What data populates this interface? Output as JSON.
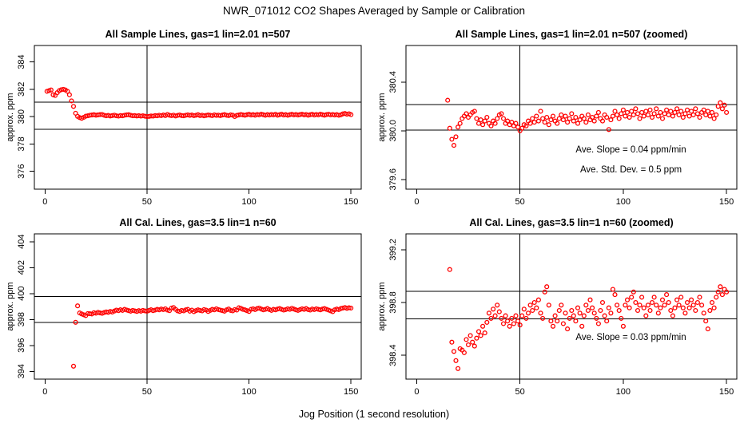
{
  "header": {
    "title": "NWR_071012  CO2 Shapes Averaged by Sample or Calibration"
  },
  "xlabel": "Jog Position (1 second resolution)",
  "colors": {
    "point": "#FF0000",
    "axis": "#000000",
    "background": "#FFFFFF"
  },
  "chart_data": {
    "type": "scatter",
    "title": "NWR_071012  CO2 Shapes Averaged by Sample or Calibration",
    "xlabel": "Jog Position (1 second resolution)",
    "point_style": "open-circle-red",
    "grid": false,
    "series": {
      "sample": [
        [
          1,
          381.85
        ],
        [
          2,
          381.9
        ],
        [
          3,
          381.95
        ],
        [
          4,
          381.6
        ],
        [
          5,
          381.55
        ],
        [
          6,
          381.75
        ],
        [
          7,
          381.9
        ],
        [
          8,
          381.97
        ],
        [
          9,
          382.0
        ],
        [
          10,
          381.95
        ],
        [
          11,
          381.85
        ],
        [
          12,
          381.6
        ],
        [
          13,
          381.15
        ],
        [
          14,
          380.75
        ],
        [
          15,
          380.25
        ],
        [
          16,
          380.02
        ],
        [
          17,
          379.93
        ],
        [
          18,
          379.88
        ],
        [
          19,
          379.95
        ],
        [
          20,
          380.03
        ],
        [
          21,
          380.06
        ],
        [
          22,
          380.1
        ],
        [
          23,
          380.12
        ],
        [
          24,
          380.14
        ],
        [
          25,
          380.11
        ],
        [
          26,
          380.13
        ],
        [
          27,
          380.15
        ],
        [
          28,
          380.16
        ],
        [
          29,
          380.1
        ],
        [
          30,
          380.06
        ],
        [
          31,
          380.09
        ],
        [
          32,
          380.05
        ],
        [
          33,
          380.08
        ],
        [
          34,
          380.11
        ],
        [
          35,
          380.06
        ],
        [
          36,
          380.04
        ],
        [
          37,
          380.08
        ],
        [
          38,
          380.06
        ],
        [
          39,
          380.1
        ],
        [
          40,
          380.13
        ],
        [
          41,
          380.14
        ],
        [
          42,
          380.1
        ],
        [
          43,
          380.06
        ],
        [
          44,
          380.08
        ],
        [
          45,
          380.05
        ],
        [
          46,
          380.07
        ],
        [
          47,
          380.04
        ],
        [
          48,
          380.06
        ],
        [
          49,
          380.03
        ],
        [
          50,
          380.0
        ],
        [
          51,
          380.02
        ],
        [
          52,
          380.05
        ],
        [
          53,
          380.04
        ],
        [
          54,
          380.08
        ],
        [
          55,
          380.06
        ],
        [
          56,
          380.1
        ],
        [
          57,
          380.07
        ],
        [
          58,
          380.12
        ],
        [
          59,
          380.08
        ],
        [
          60,
          380.16
        ],
        [
          61,
          380.1
        ],
        [
          62,
          380.07
        ],
        [
          63,
          380.11
        ],
        [
          64,
          380.05
        ],
        [
          65,
          380.09
        ],
        [
          66,
          380.12
        ],
        [
          67,
          380.08
        ],
        [
          68,
          380.06
        ],
        [
          69,
          380.1
        ],
        [
          70,
          380.13
        ],
        [
          71,
          380.09
        ],
        [
          72,
          380.12
        ],
        [
          73,
          380.07
        ],
        [
          74,
          380.1
        ],
        [
          75,
          380.14
        ],
        [
          76,
          380.08
        ],
        [
          77,
          380.11
        ],
        [
          78,
          380.06
        ],
        [
          79,
          380.09
        ],
        [
          80,
          380.12
        ],
        [
          81,
          380.1
        ],
        [
          82,
          380.07
        ],
        [
          83,
          380.13
        ],
        [
          84,
          380.09
        ],
        [
          85,
          380.11
        ],
        [
          86,
          380.08
        ],
        [
          87,
          380.12
        ],
        [
          88,
          380.15
        ],
        [
          89,
          380.1
        ],
        [
          90,
          380.08
        ],
        [
          91,
          380.13
        ],
        [
          92,
          380.11
        ],
        [
          93,
          380.01
        ],
        [
          94,
          380.09
        ],
        [
          95,
          380.12
        ],
        [
          96,
          380.16
        ],
        [
          97,
          380.13
        ],
        [
          98,
          380.1
        ],
        [
          99,
          380.14
        ],
        [
          100,
          380.17
        ],
        [
          101,
          380.12
        ],
        [
          102,
          380.15
        ],
        [
          103,
          380.11
        ],
        [
          104,
          380.16
        ],
        [
          105,
          380.13
        ],
        [
          106,
          380.18
        ],
        [
          107,
          380.14
        ],
        [
          108,
          380.1
        ],
        [
          109,
          380.15
        ],
        [
          110,
          380.12
        ],
        [
          111,
          380.16
        ],
        [
          112,
          380.13
        ],
        [
          113,
          380.17
        ],
        [
          114,
          380.11
        ],
        [
          115,
          380.14
        ],
        [
          116,
          380.18
        ],
        [
          117,
          380.12
        ],
        [
          118,
          380.15
        ],
        [
          119,
          380.1
        ],
        [
          120,
          380.14
        ],
        [
          121,
          380.17
        ],
        [
          122,
          380.13
        ],
        [
          123,
          380.16
        ],
        [
          124,
          380.12
        ],
        [
          125,
          380.15
        ],
        [
          126,
          380.18
        ],
        [
          127,
          380.13
        ],
        [
          128,
          380.16
        ],
        [
          129,
          380.11
        ],
        [
          130,
          380.14
        ],
        [
          131,
          380.17
        ],
        [
          132,
          380.12
        ],
        [
          133,
          380.16
        ],
        [
          134,
          380.13
        ],
        [
          135,
          380.18
        ],
        [
          136,
          380.14
        ],
        [
          137,
          380.11
        ],
        [
          138,
          380.15
        ],
        [
          139,
          380.17
        ],
        [
          140,
          380.13
        ],
        [
          141,
          380.16
        ],
        [
          142,
          380.12
        ],
        [
          143,
          380.15
        ],
        [
          144,
          380.1
        ],
        [
          145,
          380.13
        ],
        [
          146,
          380.2
        ],
        [
          147,
          380.23
        ],
        [
          148,
          380.18
        ],
        [
          149,
          380.21
        ],
        [
          150,
          380.15
        ]
      ],
      "cal": [
        [
          14,
          394.4
        ],
        [
          15,
          397.78
        ],
        [
          16,
          399.05
        ],
        [
          17,
          398.5
        ],
        [
          18,
          398.43
        ],
        [
          19,
          398.36
        ],
        [
          20,
          398.3
        ],
        [
          21,
          398.45
        ],
        [
          22,
          398.44
        ],
        [
          23,
          398.42
        ],
        [
          24,
          398.52
        ],
        [
          25,
          398.48
        ],
        [
          26,
          398.55
        ],
        [
          27,
          398.5
        ],
        [
          28,
          398.47
        ],
        [
          29,
          398.53
        ],
        [
          30,
          398.58
        ],
        [
          31,
          398.55
        ],
        [
          32,
          398.62
        ],
        [
          33,
          398.57
        ],
        [
          34,
          398.65
        ],
        [
          35,
          398.72
        ],
        [
          36,
          398.68
        ],
        [
          37,
          398.75
        ],
        [
          38,
          398.7
        ],
        [
          39,
          398.78
        ],
        [
          40,
          398.73
        ],
        [
          41,
          398.68
        ],
        [
          42,
          398.64
        ],
        [
          43,
          398.7
        ],
        [
          44,
          398.66
        ],
        [
          45,
          398.62
        ],
        [
          46,
          398.68
        ],
        [
          47,
          398.64
        ],
        [
          48,
          398.7
        ],
        [
          49,
          398.66
        ],
        [
          50,
          398.63
        ],
        [
          51,
          398.7
        ],
        [
          52,
          398.75
        ],
        [
          53,
          398.68
        ],
        [
          54,
          398.72
        ],
        [
          55,
          398.78
        ],
        [
          56,
          398.74
        ],
        [
          57,
          398.8
        ],
        [
          58,
          398.76
        ],
        [
          59,
          398.82
        ],
        [
          60,
          398.72
        ],
        [
          61,
          398.68
        ],
        [
          62,
          398.88
        ],
        [
          63,
          398.92
        ],
        [
          64,
          398.78
        ],
        [
          65,
          398.66
        ],
        [
          66,
          398.62
        ],
        [
          67,
          398.7
        ],
        [
          68,
          398.66
        ],
        [
          69,
          398.74
        ],
        [
          70,
          398.78
        ],
        [
          71,
          398.64
        ],
        [
          72,
          398.72
        ],
        [
          73,
          398.6
        ],
        [
          74,
          398.68
        ],
        [
          75,
          398.74
        ],
        [
          76,
          398.7
        ],
        [
          77,
          398.66
        ],
        [
          78,
          398.76
        ],
        [
          79,
          398.72
        ],
        [
          80,
          398.62
        ],
        [
          81,
          398.7
        ],
        [
          82,
          398.78
        ],
        [
          83,
          398.74
        ],
        [
          84,
          398.82
        ],
        [
          85,
          398.76
        ],
        [
          86,
          398.72
        ],
        [
          87,
          398.68
        ],
        [
          88,
          398.64
        ],
        [
          89,
          398.74
        ],
        [
          90,
          398.8
        ],
        [
          91,
          398.7
        ],
        [
          92,
          398.66
        ],
        [
          93,
          398.76
        ],
        [
          94,
          398.72
        ],
        [
          95,
          398.9
        ],
        [
          96,
          398.86
        ],
        [
          97,
          398.78
        ],
        [
          98,
          398.74
        ],
        [
          99,
          398.68
        ],
        [
          100,
          398.62
        ],
        [
          101,
          398.78
        ],
        [
          102,
          398.82
        ],
        [
          103,
          398.76
        ],
        [
          104,
          398.84
        ],
        [
          105,
          398.88
        ],
        [
          106,
          398.8
        ],
        [
          107,
          398.74
        ],
        [
          108,
          398.78
        ],
        [
          109,
          398.84
        ],
        [
          110,
          398.76
        ],
        [
          111,
          398.7
        ],
        [
          112,
          398.78
        ],
        [
          113,
          398.74
        ],
        [
          114,
          398.8
        ],
        [
          115,
          398.84
        ],
        [
          116,
          398.78
        ],
        [
          117,
          398.72
        ],
        [
          118,
          398.76
        ],
        [
          119,
          398.82
        ],
        [
          120,
          398.78
        ],
        [
          121,
          398.86
        ],
        [
          122,
          398.8
        ],
        [
          123,
          398.74
        ],
        [
          124,
          398.7
        ],
        [
          125,
          398.76
        ],
        [
          126,
          398.82
        ],
        [
          127,
          398.78
        ],
        [
          128,
          398.84
        ],
        [
          129,
          398.76
        ],
        [
          130,
          398.72
        ],
        [
          131,
          398.8
        ],
        [
          132,
          398.76
        ],
        [
          133,
          398.82
        ],
        [
          134,
          398.78
        ],
        [
          135,
          398.74
        ],
        [
          136,
          398.8
        ],
        [
          137,
          398.84
        ],
        [
          138,
          398.78
        ],
        [
          139,
          398.72
        ],
        [
          140,
          398.66
        ],
        [
          141,
          398.6
        ],
        [
          142,
          398.74
        ],
        [
          143,
          398.8
        ],
        [
          144,
          398.76
        ],
        [
          145,
          398.84
        ],
        [
          146,
          398.88
        ],
        [
          147,
          398.92
        ],
        [
          148,
          398.86
        ],
        [
          149,
          398.9
        ],
        [
          150,
          398.88
        ]
      ]
    },
    "panels": [
      {
        "id": "sample-full",
        "title": "All Sample Lines, gas=1 lin=2.01 n=507",
        "series": "sample",
        "ylabel": "approx. ppm",
        "xlim": [
          -5.2,
          155
        ],
        "ylim": [
          374.7,
          385.2
        ],
        "xticks": [
          0,
          50,
          100,
          150
        ],
        "yticks": [
          376,
          378,
          380,
          382,
          384
        ],
        "ytick_labels": [
          "376",
          "378",
          "380",
          "382",
          "384"
        ],
        "vline": 50,
        "hlines": [
          381.07,
          379.07
        ],
        "annotations": []
      },
      {
        "id": "sample-zoomed",
        "title": "All Sample Lines, gas=1 lin=2.01 n=507 (zoomed)",
        "series": "sample",
        "ylabel": "approx. ppm",
        "xlim": [
          -5.2,
          155
        ],
        "ylim": [
          379.52,
          380.7
        ],
        "xticks": [
          0,
          50,
          100,
          150
        ],
        "yticks": [
          379.6,
          380.0,
          380.4
        ],
        "ytick_labels": [
          "379.6",
          "380.0",
          "380.4"
        ],
        "vline": 50,
        "hlines": [
          380.215,
          380.005
        ],
        "annotations": [
          "Ave. Slope =  0.04  ppm/min",
          "Ave. Std. Dev. =  0.5  ppm"
        ]
      },
      {
        "id": "cal-full",
        "title": "All Cal. Lines, gas=3.5 lin=1 n=60",
        "series": "cal",
        "ylabel": "approx. ppm",
        "xlim": [
          -5.2,
          155
        ],
        "ylim": [
          393.4,
          404.6
        ],
        "xticks": [
          0,
          50,
          100,
          150
        ],
        "yticks": [
          394,
          396,
          398,
          400,
          402,
          404
        ],
        "ytick_labels": [
          "394",
          "396",
          "398",
          "400",
          "402",
          "404"
        ],
        "vline": 50,
        "hlines": [
          399.78,
          397.78
        ],
        "annotations": []
      },
      {
        "id": "cal-zoomed",
        "title": "All Cal. Lines, gas=3.5 lin=1 n=60 (zoomed)",
        "series": "cal",
        "ylabel": "approx. ppm",
        "xlim": [
          -5.2,
          155
        ],
        "ylim": [
          398.22,
          399.32
        ],
        "xticks": [
          0,
          50,
          100,
          150
        ],
        "yticks": [
          398.4,
          398.8,
          399.2
        ],
        "ytick_labels": [
          "398.4",
          "398.8",
          "399.2"
        ],
        "vline": 50,
        "hlines": [
          398.885,
          398.675
        ],
        "annotations": [
          "Ave. Slope =  0.03  ppm/min"
        ]
      }
    ]
  }
}
